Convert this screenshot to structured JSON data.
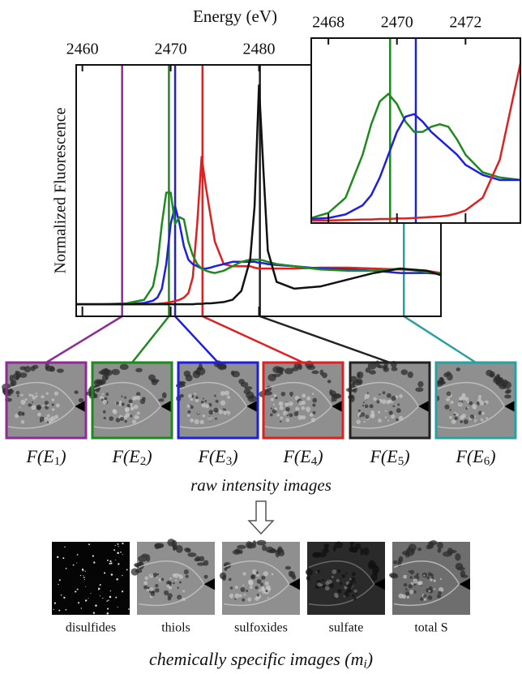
{
  "chart_data": [
    {
      "type": "line",
      "x_label": "Energy (eV)",
      "y_label": "Normalized Fluorescence",
      "xlim": [
        2459.3,
        2500.6
      ],
      "ylim": [
        -0.27,
        5.36
      ],
      "xticks": [
        2460,
        2470,
        2480
      ],
      "x": [
        2459.3,
        2462,
        2465,
        2467,
        2468,
        2468.5,
        2469,
        2469.5,
        2470,
        2470.5,
        2471,
        2471.5,
        2472,
        2472.5,
        2473,
        2473.5,
        2474,
        2474.5,
        2475,
        2476,
        2477,
        2478,
        2479,
        2479.5,
        2480,
        2480.5,
        2481,
        2482,
        2484,
        2487,
        2490,
        2493,
        2496,
        2499,
        2500.6
      ],
      "series": [
        {
          "color": "#e02020",
          "values": [
            0,
            0,
            0,
            0,
            0.01,
            0.01,
            0.02,
            0.03,
            0.05,
            0.07,
            0.1,
            0.15,
            0.25,
            0.6,
            1.8,
            3.3,
            2.6,
            2.0,
            1.4,
            0.9,
            0.85,
            0.85,
            0.85,
            0.82,
            0.8,
            0.8,
            0.8,
            0.8,
            0.8,
            0.82,
            0.82,
            0.8,
            0.78,
            0.75,
            0.7
          ]
        },
        {
          "color": "#1f1fe0",
          "values": [
            0,
            0,
            0,
            0.03,
            0.08,
            0.15,
            0.35,
            0.9,
            1.8,
            2.2,
            1.8,
            1.3,
            1.0,
            0.9,
            0.85,
            0.8,
            0.8,
            0.82,
            0.85,
            0.9,
            0.95,
            0.95,
            0.95,
            0.95,
            0.93,
            0.92,
            0.9,
            0.88,
            0.85,
            0.8,
            0.78,
            0.75,
            0.7,
            0.7,
            0.68
          ]
        },
        {
          "color": "#1e8a1e",
          "values": [
            0,
            0,
            0.02,
            0.1,
            0.4,
            0.9,
            1.8,
            2.5,
            2.5,
            1.8,
            1.95,
            1.9,
            1.4,
            1.1,
            0.9,
            0.8,
            0.75,
            0.72,
            0.7,
            0.75,
            0.85,
            0.95,
            1.0,
            1.0,
            1.0,
            0.98,
            0.95,
            0.9,
            0.85,
            0.78,
            0.75,
            0.75,
            0.8,
            0.72,
            0.7
          ]
        },
        {
          "color": "#111111",
          "values": [
            0,
            0,
            0,
            0,
            0,
            0,
            0,
            0,
            0,
            0,
            0,
            0,
            0,
            0,
            0.01,
            0.01,
            0.02,
            0.02,
            0.03,
            0.05,
            0.1,
            0.3,
            1.0,
            2.2,
            4.9,
            3.0,
            1.2,
            0.5,
            0.35,
            0.4,
            0.55,
            0.7,
            0.8,
            0.75,
            0.65
          ]
        }
      ],
      "markers": [
        {
          "x": 2464.5,
          "color": "#8e2c96"
        },
        {
          "x": 2469.8,
          "color": "#1e8a1e"
        },
        {
          "x": 2470.5,
          "color": "#1f1fe0"
        },
        {
          "x": 2473.6,
          "color": "#e02020"
        },
        {
          "x": 2480.1,
          "color": "#222222"
        },
        {
          "x": 2496.4,
          "color": "#2aa0a0"
        }
      ]
    },
    {
      "type": "line",
      "xlim": [
        2467.5,
        2473.6
      ],
      "ylim": [
        -0.05,
        3.6
      ],
      "xticks": [
        2468,
        2470,
        2472
      ],
      "x": [
        2467.5,
        2468,
        2468.5,
        2469,
        2469.25,
        2469.5,
        2469.75,
        2470,
        2470.25,
        2470.5,
        2470.75,
        2471,
        2471.25,
        2471.5,
        2471.75,
        2472,
        2472.5,
        2473,
        2473.6
      ],
      "series": [
        {
          "color": "#1e8a1e",
          "values": [
            0.05,
            0.15,
            0.45,
            1.3,
            1.9,
            2.35,
            2.5,
            2.3,
            1.95,
            1.75,
            1.75,
            1.85,
            1.9,
            1.85,
            1.6,
            1.3,
            0.95,
            0.85,
            0.8
          ]
        },
        {
          "color": "#1f1fe0",
          "values": [
            0.03,
            0.05,
            0.12,
            0.3,
            0.5,
            0.85,
            1.3,
            1.75,
            2.05,
            2.1,
            1.95,
            1.75,
            1.6,
            1.45,
            1.3,
            1.1,
            0.9,
            0.8,
            0.8
          ]
        },
        {
          "color": "#e02020",
          "values": [
            0,
            0,
            0.01,
            0.02,
            0.02,
            0.03,
            0.03,
            0.04,
            0.04,
            0.05,
            0.06,
            0.07,
            0.08,
            0.1,
            0.14,
            0.2,
            0.45,
            1.2,
            3.1
          ]
        }
      ],
      "markers": [
        {
          "x": 2469.8,
          "color": "#1e8a1e"
        },
        {
          "x": 2470.55,
          "color": "#1f1fe0"
        }
      ]
    }
  ],
  "figure": {
    "raw_images": [
      {
        "label_parts": [
          "F(",
          "E",
          "1",
          ")"
        ]
      },
      {
        "label_parts": [
          "F(",
          "E",
          "2",
          ")"
        ]
      },
      {
        "label_parts": [
          "F(",
          "E",
          "3",
          ")"
        ]
      },
      {
        "label_parts": [
          "F(",
          "E",
          "4",
          ")"
        ]
      },
      {
        "label_parts": [
          "F(",
          "E",
          "5",
          ")"
        ]
      },
      {
        "label_parts": [
          "F(",
          "E",
          "6",
          ")"
        ]
      }
    ],
    "raw_caption": "raw intensity images",
    "chemical_images": [
      "disulfides",
      "thiols",
      "sulfoxides",
      "sulfate",
      "total S"
    ],
    "chemical_caption_parts": [
      "chemically specific images (",
      "m",
      "i",
      ")"
    ]
  }
}
